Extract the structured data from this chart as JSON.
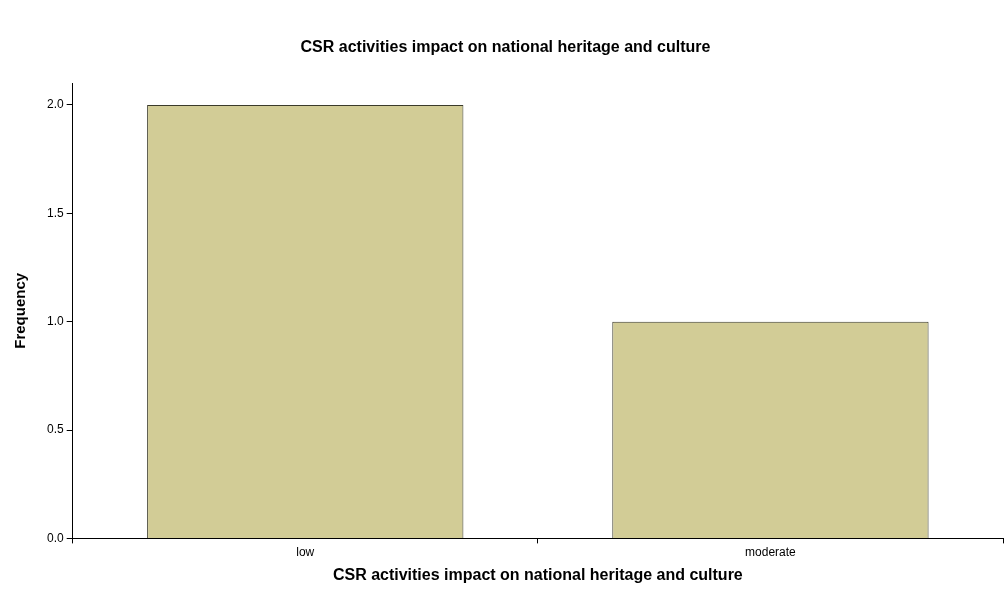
{
  "chart_data": {
    "type": "bar",
    "title": "CSR activities impact on national heritage and culture",
    "xlabel": "CSR activities impact on national heritage and culture",
    "ylabel": "Frequency",
    "categories": [
      "low",
      "moderate"
    ],
    "values": [
      2,
      1
    ],
    "color": "#d2cc96",
    "ylim": [
      0,
      2.1
    ],
    "yticks": [
      {
        "value": 0,
        "label": "0.0"
      },
      {
        "value": 0.5,
        "label": "0.5"
      },
      {
        "value": 1,
        "label": "1.0"
      },
      {
        "value": 1.5,
        "label": "1.5"
      },
      {
        "value": 2,
        "label": "2.0"
      }
    ],
    "grid": false,
    "legend": false
  }
}
